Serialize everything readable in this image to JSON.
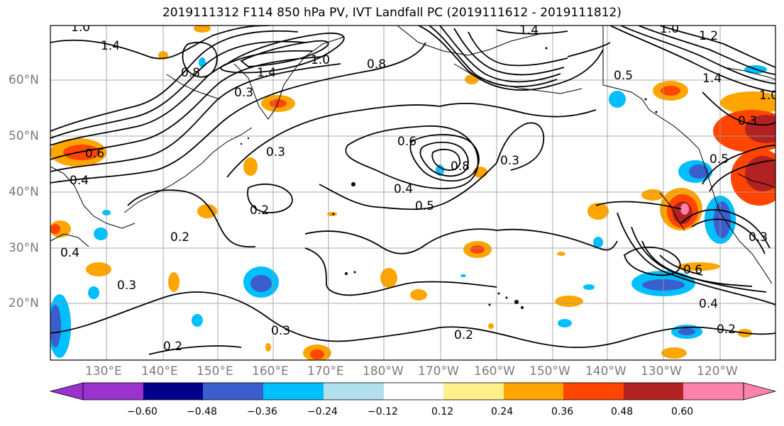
{
  "title": "2019111312 F114 850 hPa PV, IVT Landfall PC (2019111612 - 2019111812)",
  "latitude_labels": [
    "60°N",
    "50°N",
    "40°N",
    "30°N",
    "20°N"
  ],
  "longitude_labels": [
    "130°E",
    "140°E",
    "150°E",
    "160°E",
    "170°E",
    "180°W",
    "170°W",
    "160°W",
    "150°W",
    "140°W",
    "130°W",
    "120°W"
  ],
  "contour_labels": [
    "1.0",
    "1.4",
    "0.8",
    "1.4",
    "1.0",
    "0.3",
    "0.8",
    "1.4",
    "1.0",
    "1.2",
    "1.4",
    "0.5",
    "1.0",
    "0.6",
    "0.6",
    "0.8",
    "0.3",
    "0.3",
    "0.4",
    "0.5",
    "0.3",
    "0.5",
    "0.3",
    "0.2",
    "0.2",
    "0.4",
    "0.3",
    "0.3",
    "0.2",
    "0.2",
    "0.6",
    "0.4",
    "0.2",
    "0.4"
  ],
  "colorbar": {
    "ticks": [
      "−0.60",
      "−0.48",
      "−0.36",
      "−0.24",
      "−0.12",
      "0.12",
      "0.24",
      "0.36",
      "0.48",
      "0.60"
    ],
    "colors": [
      "#9a32cd",
      "#00008b",
      "#3a5fcd",
      "#00bfff",
      "#b2dfee",
      "#ffffff",
      "#fff08c",
      "#ffa500",
      "#ff4500",
      "#b22222",
      "#ff82ab"
    ]
  }
}
